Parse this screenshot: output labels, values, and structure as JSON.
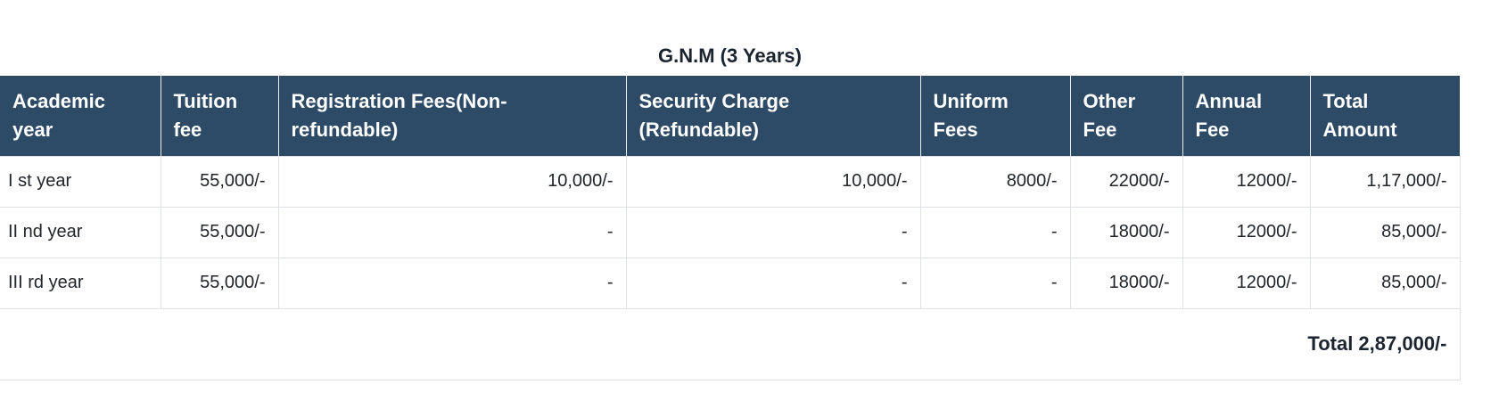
{
  "title": "G.N.M (3 Years)",
  "table": {
    "headers": [
      "Academic year",
      "Tuition fee",
      "Registration Fees(Non-refundable)",
      "Security Charge (Refundable)",
      "Uniform Fees",
      "Other Fee",
      "Annual Fee",
      "Total Amount"
    ],
    "rows": [
      {
        "year": "I st year",
        "tuition": "55,000/-",
        "registration": "10,000/-",
        "security": "10,000/-",
        "uniform": "8000/-",
        "other_fee": "22000/-",
        "annual_fee": "12000/-",
        "total": "1,17,000/-"
      },
      {
        "year": "II nd year",
        "tuition": "55,000/-",
        "registration": "-",
        "security": "-",
        "uniform": "-",
        "other_fee": "18000/-",
        "annual_fee": "12000/-",
        "total": "85,000/-"
      },
      {
        "year": "III rd year",
        "tuition": "55,000/-",
        "registration": "-",
        "security": "-",
        "uniform": "-",
        "other_fee": "18000/-",
        "annual_fee": "12000/-",
        "total": "85,000/-"
      }
    ],
    "footer_total": "Total 2,87,000/-"
  },
  "colors": {
    "header_bg": "#2d4a66",
    "header_text": "#ffffff",
    "body_text": "#212529",
    "border": "#dee2e6"
  }
}
